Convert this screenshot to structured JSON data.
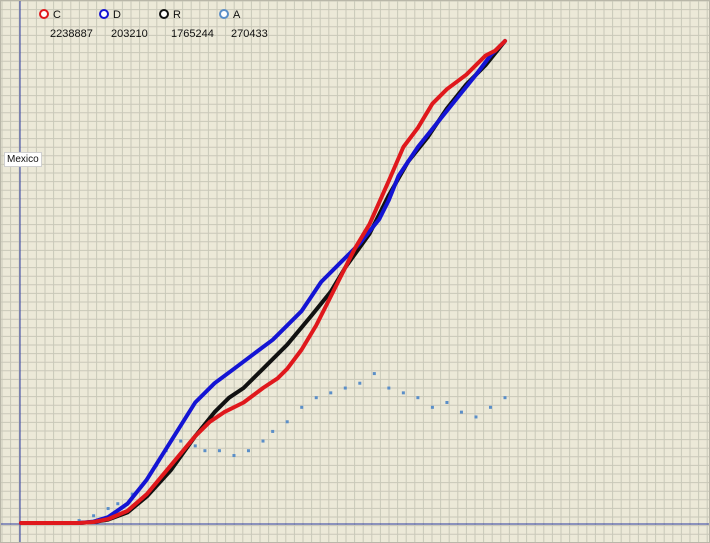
{
  "region": "Mexico",
  "legend": [
    {
      "key": "C",
      "value": "2238887",
      "color": "#e0181c"
    },
    {
      "key": "D",
      "value": "203210",
      "color": "#1414d4"
    },
    {
      "key": "R",
      "value": "1765244",
      "color": "#111111"
    },
    {
      "key": "A",
      "value": "270433",
      "color": "#5a8ec8"
    }
  ],
  "colors": {
    "background": "#ECE9D8",
    "grid": "#c9c8b9",
    "axis": "#2b3aa0"
  },
  "chart_data": {
    "type": "line",
    "title": "",
    "xlabel": "",
    "ylabel": "",
    "grid": true,
    "legend_position": "top-left",
    "x_range": [
      0,
      1
    ],
    "y_range": [
      0,
      1
    ],
    "series": [
      {
        "name": "C",
        "color": "#e0181c",
        "x": [
          0,
          0.12,
          0.15,
          0.18,
          0.22,
          0.26,
          0.31,
          0.36,
          0.39,
          0.42,
          0.46,
          0.5,
          0.53,
          0.55,
          0.58,
          0.61,
          0.63,
          0.655,
          0.675,
          0.69,
          0.72,
          0.76,
          0.79,
          0.82,
          0.85,
          0.88,
          0.92,
          0.94,
          0.96,
          0.98,
          1
        ],
        "y": [
          0,
          0,
          0.002,
          0.008,
          0.025,
          0.06,
          0.12,
          0.18,
          0.21,
          0.23,
          0.25,
          0.28,
          0.3,
          0.32,
          0.36,
          0.41,
          0.45,
          0.5,
          0.54,
          0.57,
          0.62,
          0.71,
          0.78,
          0.82,
          0.87,
          0.9,
          0.93,
          0.95,
          0.97,
          0.98,
          1
        ]
      },
      {
        "name": "D",
        "color": "#1414d4",
        "x": [
          0,
          0.12,
          0.15,
          0.18,
          0.22,
          0.26,
          0.31,
          0.36,
          0.4,
          0.44,
          0.48,
          0.52,
          0.55,
          0.58,
          0.6,
          0.62,
          0.66,
          0.7,
          0.74,
          0.76,
          0.78,
          0.82,
          0.86,
          0.9,
          0.94,
          0.97,
          1
        ],
        "y": [
          0,
          0,
          0.003,
          0.012,
          0.04,
          0.09,
          0.17,
          0.25,
          0.29,
          0.32,
          0.35,
          0.38,
          0.41,
          0.44,
          0.47,
          0.5,
          0.54,
          0.58,
          0.63,
          0.67,
          0.72,
          0.78,
          0.83,
          0.88,
          0.93,
          0.97,
          1
        ]
      },
      {
        "name": "R",
        "color": "#111111",
        "x": [
          0,
          0.12,
          0.15,
          0.18,
          0.22,
          0.26,
          0.31,
          0.36,
          0.4,
          0.43,
          0.46,
          0.5,
          0.55,
          0.6,
          0.64,
          0.67,
          0.72,
          0.76,
          0.8,
          0.84,
          0.88,
          0.92,
          0.96,
          1
        ],
        "y": [
          0,
          0,
          0.002,
          0.007,
          0.022,
          0.055,
          0.11,
          0.18,
          0.23,
          0.26,
          0.28,
          0.32,
          0.37,
          0.43,
          0.48,
          0.53,
          0.6,
          0.68,
          0.75,
          0.8,
          0.86,
          0.91,
          0.95,
          1
        ]
      },
      {
        "name": "A",
        "color": "#5a8ec8",
        "x": [
          0,
          0.12,
          0.15,
          0.18,
          0.2,
          0.23,
          0.26,
          0.28,
          0.3,
          0.33,
          0.36,
          0.38,
          0.41,
          0.44,
          0.47,
          0.5,
          0.52,
          0.55,
          0.58,
          0.61,
          0.64,
          0.67,
          0.7,
          0.73,
          0.76,
          0.79,
          0.82,
          0.85,
          0.88,
          0.91,
          0.94,
          0.97,
          1
        ],
        "y": [
          0,
          0.005,
          0.015,
          0.03,
          0.04,
          0.06,
          0.09,
          0.12,
          0.15,
          0.17,
          0.16,
          0.15,
          0.15,
          0.14,
          0.15,
          0.17,
          0.19,
          0.21,
          0.24,
          0.26,
          0.27,
          0.28,
          0.29,
          0.31,
          0.28,
          0.27,
          0.26,
          0.24,
          0.25,
          0.23,
          0.22,
          0.24,
          0.26
        ]
      }
    ]
  }
}
